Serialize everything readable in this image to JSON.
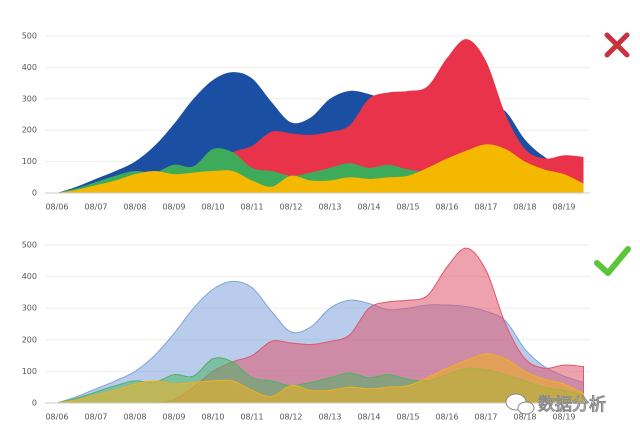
{
  "chart_data": [
    {
      "type": "area",
      "categories": [
        "08/06",
        null,
        "08/07",
        null,
        "08/08",
        null,
        "08/09",
        null,
        "08/10",
        null,
        "08/11",
        null,
        "08/12",
        null,
        "08/13",
        null,
        "08/14",
        null,
        "08/15",
        null,
        "08/16",
        null,
        "08/17",
        null,
        "08/18",
        null,
        "08/19",
        null
      ],
      "series": [
        {
          "color": "#1a4fa3",
          "values": [
            0,
            20,
            45,
            70,
            100,
            150,
            220,
            300,
            360,
            385,
            365,
            290,
            225,
            240,
            300,
            325,
            315,
            295,
            300,
            310,
            310,
            305,
            290,
            260,
            170,
            115,
            85,
            65
          ]
        },
        {
          "color": "#e8334a",
          "values": [
            0,
            0,
            0,
            0,
            0,
            0,
            10,
            50,
            100,
            130,
            150,
            195,
            190,
            185,
            195,
            215,
            300,
            320,
            325,
            340,
            430,
            490,
            420,
            250,
            140,
            110,
            120,
            115
          ]
        },
        {
          "color": "#3eab5a",
          "values": [
            0,
            15,
            35,
            55,
            70,
            65,
            90,
            85,
            140,
            130,
            80,
            70,
            55,
            65,
            80,
            95,
            80,
            90,
            75,
            70,
            90,
            110,
            105,
            90,
            70,
            50,
            40,
            25
          ]
        },
        {
          "color": "#f5b800",
          "values": [
            0,
            10,
            25,
            40,
            60,
            70,
            60,
            65,
            70,
            70,
            40,
            20,
            55,
            40,
            40,
            50,
            45,
            50,
            55,
            80,
            110,
            135,
            155,
            140,
            100,
            75,
            60,
            30
          ]
        }
      ],
      "ylim": [
        0,
        500
      ],
      "yticks": [
        0,
        100,
        200,
        300,
        400,
        500
      ],
      "grid": true,
      "fill_opacity": 1
    },
    {
      "type": "area",
      "categories": [
        "08/06",
        null,
        "08/07",
        null,
        "08/08",
        null,
        "08/09",
        null,
        "08/10",
        null,
        "08/11",
        null,
        "08/12",
        null,
        "08/13",
        null,
        "08/14",
        null,
        "08/15",
        null,
        "08/16",
        null,
        "08/17",
        null,
        "08/18",
        null,
        "08/19",
        null
      ],
      "series": [
        {
          "color": "#7fa3dc",
          "values": [
            0,
            20,
            45,
            70,
            100,
            150,
            220,
            300,
            360,
            385,
            365,
            290,
            225,
            240,
            300,
            325,
            315,
            295,
            300,
            310,
            310,
            305,
            290,
            260,
            170,
            115,
            85,
            65
          ]
        },
        {
          "color": "#e0566b",
          "values": [
            0,
            0,
            0,
            0,
            0,
            0,
            10,
            50,
            100,
            130,
            150,
            195,
            190,
            185,
            195,
            215,
            300,
            320,
            325,
            340,
            430,
            490,
            420,
            250,
            140,
            110,
            120,
            115
          ]
        },
        {
          "color": "#4fb266",
          "values": [
            0,
            15,
            35,
            55,
            70,
            65,
            90,
            85,
            140,
            130,
            80,
            70,
            55,
            65,
            80,
            95,
            80,
            90,
            75,
            70,
            90,
            110,
            105,
            90,
            70,
            50,
            40,
            25
          ]
        },
        {
          "color": "#f2b01e",
          "values": [
            0,
            10,
            25,
            40,
            60,
            70,
            60,
            65,
            70,
            70,
            40,
            20,
            55,
            40,
            40,
            50,
            45,
            50,
            55,
            80,
            110,
            135,
            155,
            140,
            100,
            75,
            60,
            30
          ]
        }
      ],
      "ylim": [
        0,
        500
      ],
      "yticks": [
        0,
        100,
        200,
        300,
        400,
        500
      ],
      "grid": true,
      "fill_opacity": 0.55
    }
  ],
  "watermark": "数据分析"
}
